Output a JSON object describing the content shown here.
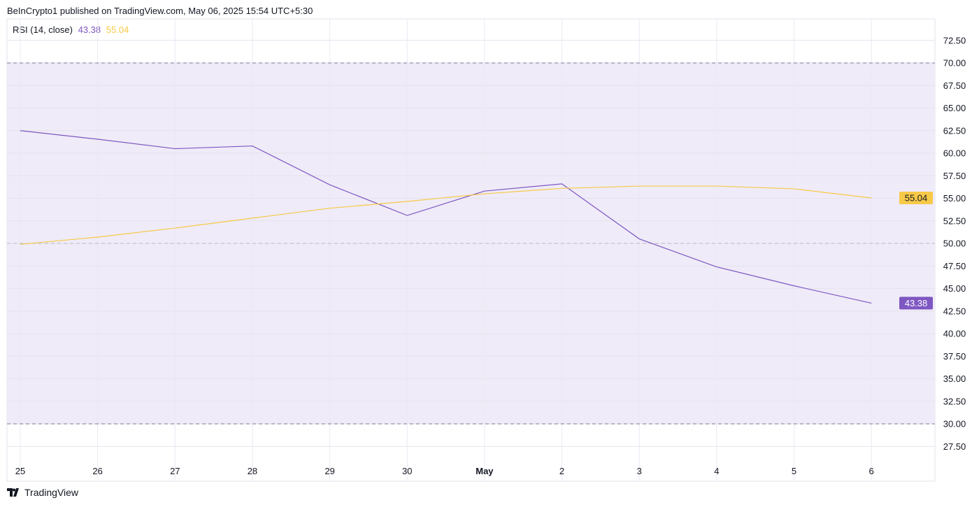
{
  "header": {
    "text": "BeInCrypto1 published on TradingView.com, May 06, 2025 15:54 UTC+5:30"
  },
  "legend": {
    "indicator": "RSI (14, close)",
    "rsi_value": "43.38",
    "ma_value": "55.04"
  },
  "footer": {
    "brand": "TradingView",
    "logo_icon": "tradingview-logo-icon"
  },
  "colors": {
    "rsi": "#7e57c2",
    "ma": "#f7c948",
    "band": "#efebf8",
    "rsi_label_bg": "#7e57c2",
    "ma_label_bg": "#f7c948"
  },
  "chart_data": {
    "type": "line",
    "title": "",
    "x_tick_labels": [
      "25",
      "26",
      "27",
      "28",
      "29",
      "30",
      "May",
      "2",
      "3",
      "4",
      "5",
      "6"
    ],
    "ylim": [
      26,
      74
    ],
    "y_tick_labels": [
      "27.50",
      "30.00",
      "32.50",
      "35.00",
      "37.50",
      "40.00",
      "42.50",
      "45.00",
      "47.50",
      "50.00",
      "52.50",
      "55.00",
      "57.50",
      "60.00",
      "62.50",
      "65.00",
      "67.50",
      "70.00",
      "72.50"
    ],
    "y_ticks": [
      27.5,
      30,
      32.5,
      35,
      37.5,
      40,
      42.5,
      45,
      47.5,
      50,
      52.5,
      55,
      57.5,
      60,
      62.5,
      65,
      67.5,
      70,
      72.5
    ],
    "bands": {
      "upper": 70,
      "middle": 50,
      "lower": 30
    },
    "grid": true,
    "series": [
      {
        "key": "rsi",
        "values": [
          62.5,
          61.55,
          60.5,
          60.8,
          56.5,
          53.1,
          55.8,
          56.6,
          50.5,
          47.4,
          45.3,
          43.38
        ]
      },
      {
        "key": "ma",
        "values": [
          49.9,
          50.7,
          51.7,
          52.8,
          53.9,
          54.65,
          55.5,
          56.1,
          56.35,
          56.35,
          56.05,
          55.04
        ]
      }
    ],
    "last_value_labels": {
      "rsi": "43.38",
      "ma": "55.04"
    }
  }
}
